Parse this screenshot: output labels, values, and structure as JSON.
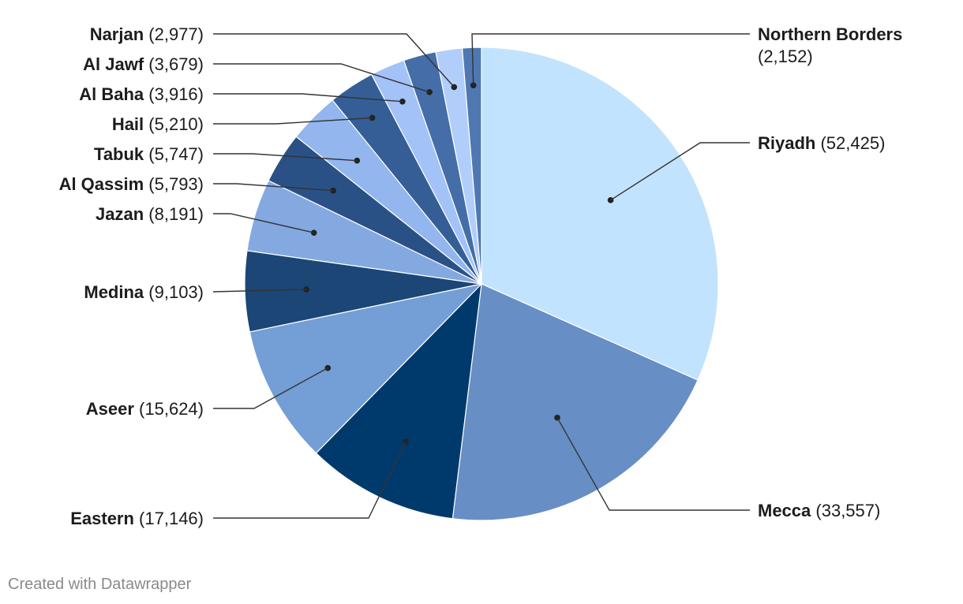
{
  "chart_data": {
    "type": "pie",
    "start_angle_deg": 0,
    "direction": "clockwise",
    "slices": [
      {
        "name": "Riyadh",
        "value": 52425,
        "display": "52,425",
        "color": "#c2e3fd"
      },
      {
        "name": "Mecca",
        "value": 33557,
        "display": "33,557",
        "color": "#678ec5"
      },
      {
        "name": "Eastern",
        "value": 17146,
        "display": "17,146",
        "color": "#003a6c"
      },
      {
        "name": "Aseer",
        "value": 15624,
        "display": "15,624",
        "color": "#739ed6"
      },
      {
        "name": "Medina",
        "value": 9103,
        "display": "9,103",
        "color": "#1b4676"
      },
      {
        "name": "Jazan",
        "value": 8191,
        "display": "8,191",
        "color": "#84a9e1"
      },
      {
        "name": "Al Qassim",
        "value": 5793,
        "display": "5,793",
        "color": "#2a5186"
      },
      {
        "name": "Tabuk",
        "value": 5747,
        "display": "5,747",
        "color": "#93b6ee"
      },
      {
        "name": "Hail",
        "value": 5210,
        "display": "5,210",
        "color": "#355e97"
      },
      {
        "name": "Al Baha",
        "value": 3916,
        "display": "3,916",
        "color": "#a2c2f8"
      },
      {
        "name": "Al Jawf",
        "value": 3679,
        "display": "3,679",
        "color": "#456ea8"
      },
      {
        "name": "Narjan",
        "value": 2977,
        "display": "2,977",
        "color": "#b1cefb"
      },
      {
        "name": "Northern Borders",
        "value": 2152,
        "display": "2,152",
        "color": "#4f78b3"
      }
    ]
  },
  "footer": {
    "credit": "Created with Datawrapper"
  }
}
